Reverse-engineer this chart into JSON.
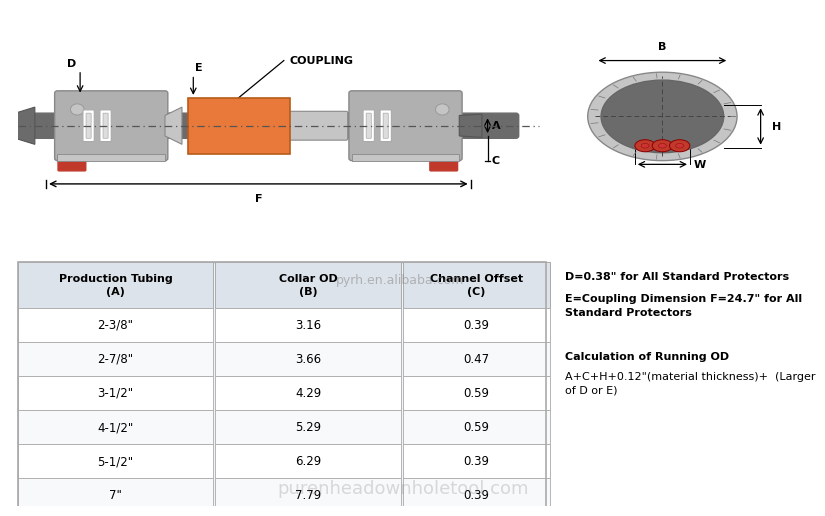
{
  "bg_color": "#ffffff",
  "table_header_bg": "#dde3ea",
  "table_border": "#aaaaaa",
  "gray_dark": "#6b6b6b",
  "gray_med": "#8a8a8a",
  "gray_light": "#c5c5c5",
  "gray_body": "#b0b0b0",
  "orange": "#e8793a",
  "red_acc": "#c0392b",
  "white": "#ffffff",
  "table_headers": [
    "Production Tubing\n(A)",
    "Collar OD\n(B)",
    "Channel Offset\n(C)"
  ],
  "table_data": [
    [
      "2-3/8\"",
      "3.16",
      "0.39"
    ],
    [
      "2-7/8\"",
      "3.66",
      "0.47"
    ],
    [
      "3-1/2\"",
      "4.29",
      "0.59"
    ],
    [
      "4-1/2\"",
      "5.29",
      "0.59"
    ],
    [
      "5-1/2\"",
      "6.29",
      "0.39"
    ],
    [
      "7\"",
      "7.79",
      "0.39"
    ]
  ],
  "coupling_label": "COUPLING",
  "note1": "D=0.38\" for All Standard Protectors",
  "note2": "E=Coupling Dimension F=24.7\" for All\nStandard Protectors",
  "note3": "Calculation of Running OD",
  "note4": "A+C+H+0.12\"(material thickness)+  (Larger\nof D or E)",
  "watermark1": "pyrh.en.alibaba.com",
  "watermark2": "purenheadownholetool.com"
}
